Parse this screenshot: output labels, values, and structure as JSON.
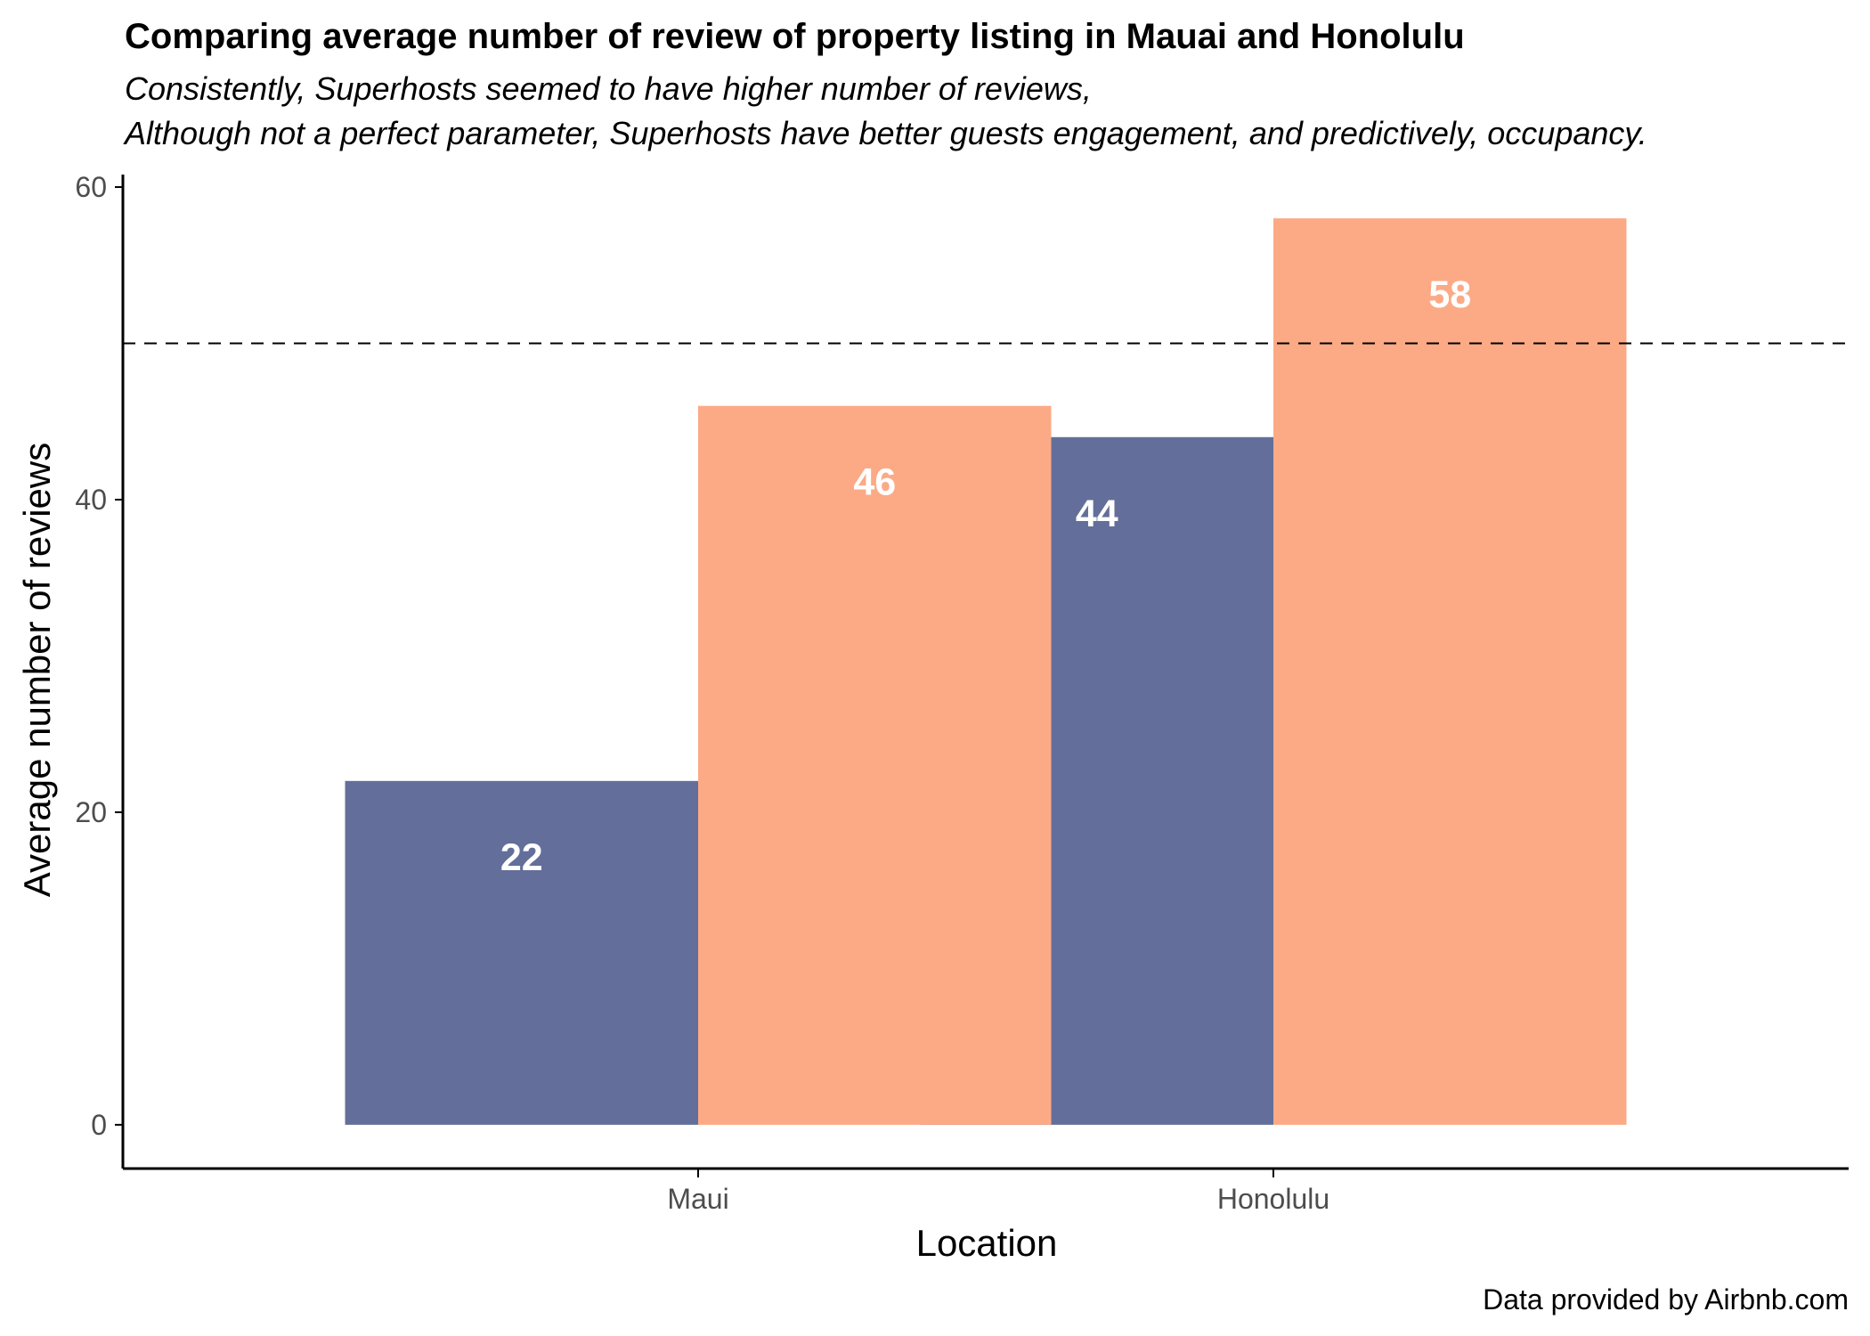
{
  "colors": {
    "series_non_superhost": "#636f9a",
    "series_superhost": "#fcaa86",
    "axis_line": "#000000",
    "reference_line": "#000000",
    "tick_label": "#4d4d4d",
    "data_label": "#ffffff"
  },
  "chart_data": {
    "type": "bar",
    "title": "Comparing average number of review of property listing in Mauai and Honolulu",
    "subtitle_lines": [
      "Consistently, Superhosts seemed to have higher number of reviews,",
      "Although not a perfect parameter, Superhosts have better guests engagement, and predictively, occupancy."
    ],
    "caption": "Data provided by Airbnb.com",
    "xlabel": "Location",
    "ylabel": "Average number of reviews",
    "categories": [
      "Maui",
      "Honolulu"
    ],
    "series": [
      {
        "values": [
          22,
          44
        ],
        "labels": [
          "22",
          "44"
        ],
        "color": "#636f9a"
      },
      {
        "values": [
          46,
          58
        ],
        "labels": [
          "46",
          "58"
        ],
        "color": "#fcaa86"
      }
    ],
    "y_ticks": [
      0,
      20,
      40,
      60
    ],
    "y_tick_labels": [
      "0",
      "20",
      "40",
      "60"
    ],
    "ylim": [
      -2.8,
      60.8
    ],
    "reference_line": {
      "y": 50,
      "style": "dashed"
    },
    "grid": false,
    "legend": "none"
  }
}
